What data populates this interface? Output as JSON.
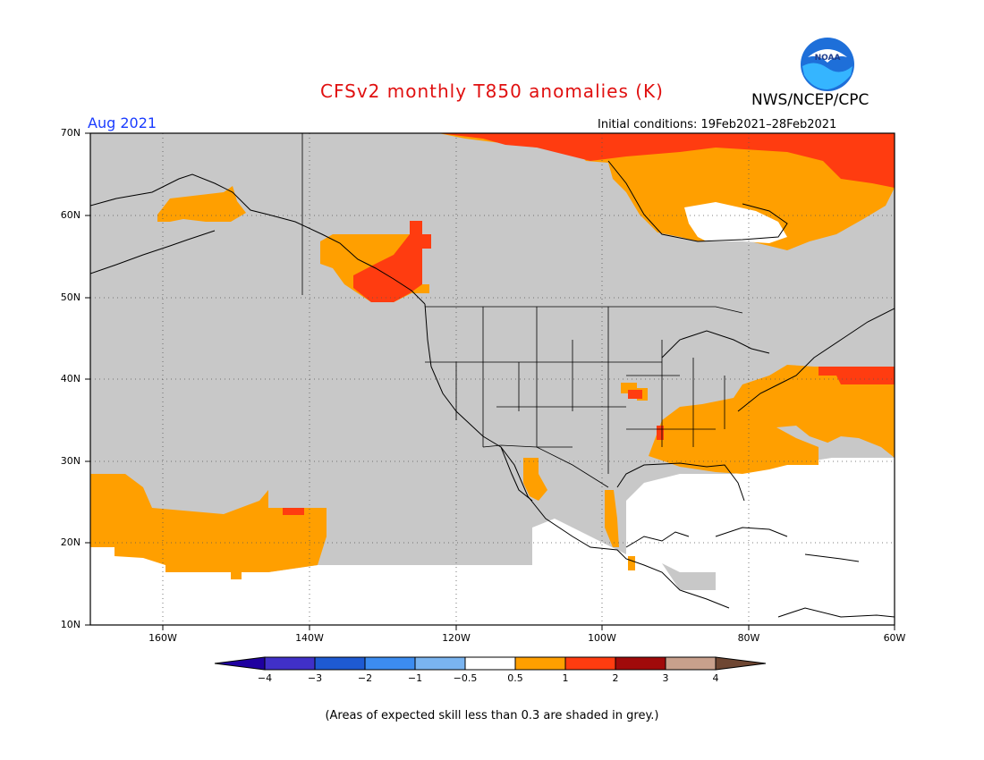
{
  "header": {
    "title": "CFSv2 monthly T850 anomalies (K)",
    "agency": "NWS/NCEP/CPC",
    "logo_text": "NOAA",
    "period": "Aug 2021",
    "initial_conditions": "Initial conditions: 19Feb2021–28Feb2021"
  },
  "map": {
    "lat_ticks": [
      "70N",
      "60N",
      "50N",
      "40N",
      "30N",
      "20N",
      "10N"
    ],
    "lon_ticks": [
      "160W",
      "140W",
      "120W",
      "100W",
      "80W",
      "60W"
    ],
    "extent": {
      "lon_min": -170,
      "lon_max": -60,
      "lat_min": 10,
      "lat_max": 70
    },
    "colors": {
      "skill_mask_grey": "#c8c8c8",
      "anomaly_0_5_to_1": "#ff9f00",
      "anomaly_1_to_2": "#ff3c10",
      "no_signal": "#ffffff",
      "outline": "#000000"
    }
  },
  "colorbar": {
    "labels": [
      "−4",
      "−3",
      "−2",
      "−1",
      "−0.5",
      "0.5",
      "1",
      "2",
      "3",
      "4"
    ],
    "colors": [
      "#1f00a0",
      "#4030c8",
      "#1e5ad2",
      "#3c8cf0",
      "#7ab4f0",
      "#ffffff",
      "#ff9f00",
      "#ff3c10",
      "#a00a0a",
      "#c8a08c",
      "#6e4632"
    ]
  },
  "footnote": "(Areas of expected skill less than 0.3 are shaded in grey.)"
}
